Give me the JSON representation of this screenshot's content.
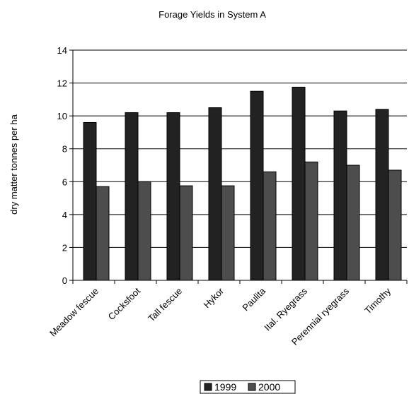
{
  "chart_data": {
    "type": "bar",
    "title": "Forage Yields in System A",
    "ylabel": "dry matter tonnes per ha",
    "xlabel": "",
    "ylim": [
      0,
      14
    ],
    "yticks": [
      0,
      2,
      4,
      6,
      8,
      10,
      12,
      14
    ],
    "grid": true,
    "legend_position": "bottom",
    "categories": [
      "Meadow fescue",
      "Cocksfoot",
      "Tall fescue",
      "Hykor",
      "Paulita",
      "Ital. Ryegrass",
      "Perennial ryegrass",
      "Timothy"
    ],
    "series": [
      {
        "name": "1999",
        "color": "#222222",
        "values": [
          9.6,
          10.2,
          10.2,
          10.5,
          11.5,
          11.75,
          10.3,
          10.4
        ]
      },
      {
        "name": "2000",
        "color": "#4d4d4d",
        "values": [
          5.7,
          6.0,
          5.75,
          5.75,
          6.6,
          7.2,
          7.0,
          6.7
        ]
      }
    ]
  }
}
